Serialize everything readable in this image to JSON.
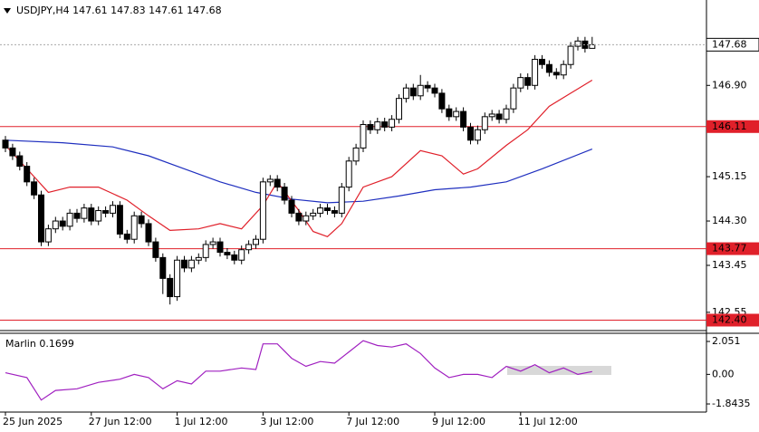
{
  "chart_data": [
    {
      "type": "candlestick",
      "title": "USDJPY,H4  147.61 147.83 147.61 147.68",
      "categories": [
        "25 Jun 2025",
        null,
        null,
        null,
        null,
        null,
        null,
        null,
        null,
        null,
        null,
        null,
        "27 Jun 12:00",
        null,
        null,
        null,
        null,
        null,
        null,
        null,
        null,
        null,
        null,
        null,
        "1 Jul 12:00",
        null,
        null,
        null,
        null,
        null,
        null,
        null,
        null,
        null,
        null,
        null,
        "3 Jul 12:00",
        null,
        null,
        null,
        null,
        null,
        null,
        null,
        null,
        null,
        null,
        null,
        "7 Jul 12:00",
        null,
        null,
        null,
        null,
        null,
        null,
        null,
        null,
        null,
        null,
        null,
        "9 Jul 12:00",
        null,
        null,
        null,
        null,
        null,
        null,
        null,
        null,
        null,
        null,
        null,
        "11 Jul 12:00",
        null,
        null,
        null,
        null,
        null,
        null,
        null,
        null,
        null,
        null
      ],
      "open": [
        145.85,
        145.7,
        145.55,
        145.35,
        145.05,
        144.8,
        143.9,
        144.15,
        144.3,
        144.2,
        144.45,
        144.35,
        144.55,
        144.3,
        144.5,
        144.45,
        144.6,
        144.05,
        143.95,
        144.4,
        144.25,
        143.9,
        143.6,
        143.2,
        142.85,
        143.55,
        143.4,
        143.55,
        143.6,
        143.85,
        143.9,
        143.7,
        143.65,
        143.55,
        143.75,
        143.85,
        143.95,
        145.05,
        145.1,
        144.95,
        144.7,
        144.45,
        144.3,
        144.4,
        144.45,
        144.55,
        144.5,
        144.45,
        144.95,
        145.45,
        145.7,
        146.15,
        146.05,
        146.2,
        146.1,
        146.25,
        146.65,
        146.85,
        146.7,
        146.9,
        146.85,
        146.75,
        146.45,
        146.3,
        146.4,
        146.1,
        145.85,
        146.05,
        146.3,
        146.35,
        146.25,
        146.45,
        146.85,
        147.05,
        146.9,
        147.4,
        147.3,
        147.15,
        147.1,
        147.3,
        147.65,
        147.75,
        147.61
      ],
      "high": [
        145.93,
        145.78,
        145.63,
        145.43,
        145.13,
        144.88,
        144.23,
        144.38,
        144.38,
        144.53,
        144.53,
        144.63,
        144.63,
        144.58,
        144.58,
        144.68,
        144.68,
        144.13,
        144.48,
        144.48,
        144.33,
        143.98,
        143.68,
        143.28,
        143.63,
        143.63,
        143.63,
        143.68,
        143.93,
        143.98,
        143.98,
        143.78,
        143.73,
        143.83,
        143.93,
        144.03,
        145.13,
        145.18,
        145.18,
        145.03,
        144.78,
        144.53,
        144.48,
        144.53,
        144.63,
        144.63,
        144.58,
        145.03,
        145.53,
        145.78,
        146.23,
        146.23,
        146.28,
        146.28,
        146.33,
        146.73,
        146.93,
        146.93,
        147.1,
        146.98,
        146.93,
        146.83,
        146.53,
        146.48,
        146.48,
        146.18,
        146.13,
        146.38,
        146.43,
        146.43,
        146.53,
        146.93,
        147.13,
        147.13,
        147.48,
        147.48,
        147.38,
        147.23,
        147.38,
        147.73,
        147.83,
        147.83,
        147.83
      ],
      "low": [
        145.62,
        145.47,
        145.27,
        144.97,
        144.72,
        143.82,
        143.82,
        144.07,
        144.12,
        144.12,
        144.27,
        144.27,
        144.22,
        144.22,
        144.37,
        144.37,
        143.97,
        143.87,
        143.87,
        144.17,
        143.82,
        143.52,
        142.9,
        142.7,
        142.77,
        143.32,
        143.32,
        143.47,
        143.52,
        143.77,
        143.62,
        143.57,
        143.47,
        143.47,
        143.67,
        143.77,
        143.87,
        144.97,
        144.87,
        144.62,
        144.37,
        144.22,
        144.22,
        144.32,
        144.37,
        144.42,
        144.37,
        144.37,
        144.87,
        145.37,
        145.62,
        145.97,
        145.97,
        146.02,
        146.02,
        146.17,
        146.57,
        146.62,
        146.62,
        146.77,
        146.67,
        146.37,
        146.22,
        146.22,
        146.02,
        145.77,
        145.77,
        145.97,
        146.22,
        146.17,
        146.17,
        146.37,
        146.77,
        146.82,
        146.82,
        147.22,
        147.07,
        147.02,
        147.02,
        147.22,
        147.57,
        147.53,
        147.61
      ],
      "close": [
        145.7,
        145.55,
        145.35,
        145.05,
        144.8,
        143.9,
        144.15,
        144.3,
        144.2,
        144.45,
        144.35,
        144.55,
        144.3,
        144.5,
        144.45,
        144.6,
        144.05,
        143.95,
        144.4,
        144.25,
        143.9,
        143.6,
        143.2,
        142.85,
        143.55,
        143.4,
        143.55,
        143.6,
        143.85,
        143.9,
        143.7,
        143.65,
        143.55,
        143.75,
        143.85,
        143.95,
        145.05,
        145.1,
        144.95,
        144.7,
        144.45,
        144.3,
        144.4,
        144.45,
        144.55,
        144.5,
        144.45,
        144.95,
        145.45,
        145.7,
        146.15,
        146.05,
        146.2,
        146.1,
        146.25,
        146.65,
        146.85,
        146.7,
        146.9,
        146.85,
        146.75,
        146.45,
        146.3,
        146.4,
        146.1,
        145.85,
        146.05,
        146.3,
        146.35,
        146.25,
        146.45,
        146.85,
        147.05,
        146.9,
        147.4,
        147.3,
        147.15,
        147.1,
        147.3,
        147.65,
        147.75,
        147.61,
        147.68
      ],
      "up_color": "#ffffff",
      "down_color": "#000000",
      "series": [
        {
          "color": "#1f2fbf",
          "x": [
            0,
            8,
            15,
            20,
            25,
            30,
            35,
            40,
            45,
            50,
            55,
            60,
            65,
            70,
            75,
            82
          ],
          "values": [
            145.85,
            145.8,
            145.72,
            145.55,
            145.3,
            145.05,
            144.85,
            144.72,
            144.65,
            144.68,
            144.78,
            144.9,
            144.95,
            145.05,
            145.3,
            145.68
          ]
        },
        {
          "color": "#e0202a",
          "x": [
            0,
            3,
            6,
            9,
            13,
            17,
            20,
            23,
            27,
            30,
            33,
            36,
            38,
            41,
            43,
            45,
            47,
            50,
            54,
            58,
            61,
            64,
            66,
            70,
            73,
            76,
            79,
            82
          ],
          "values": [
            145.75,
            145.3,
            144.85,
            144.95,
            144.95,
            144.7,
            144.4,
            144.12,
            144.15,
            144.25,
            144.15,
            144.6,
            145.05,
            144.5,
            144.1,
            144.0,
            144.25,
            144.95,
            145.15,
            145.65,
            145.55,
            145.2,
            145.3,
            145.75,
            146.05,
            146.5,
            146.75,
            147.0
          ]
        }
      ],
      "levels": [
        {
          "value": 146.11,
          "label": "146.11"
        },
        {
          "value": 143.77,
          "label": "143.77"
        },
        {
          "value": 142.4,
          "label": "142.40"
        }
      ],
      "level_color": "#e0202a",
      "ylim": [
        142.2,
        148.45
      ],
      "yticks": [
        142.55,
        143.45,
        {
          "value": 144.3,
          "label": "144.30"
        },
        145.15,
        {
          "value": 146.9,
          "label": "146.90"
        }
      ]
    },
    {
      "type": "line",
      "title": "Marlin 0.1699",
      "series": [
        {
          "color": "#a020c0",
          "x": [
            0,
            3,
            5,
            7,
            10,
            13,
            16,
            18,
            20,
            22,
            24,
            26,
            28,
            30,
            33,
            35,
            36,
            38,
            40,
            42,
            44,
            46,
            48,
            50,
            52,
            54,
            56,
            58,
            60,
            62,
            64,
            66,
            68,
            70,
            72,
            74,
            76,
            78,
            80,
            82
          ],
          "values": [
            0.1,
            -0.2,
            -1.6,
            -1.0,
            -0.9,
            -0.5,
            -0.3,
            0.0,
            -0.2,
            -0.9,
            -0.4,
            -0.6,
            0.2,
            0.2,
            0.4,
            0.3,
            1.9,
            1.9,
            1.0,
            0.5,
            0.8,
            0.7,
            1.4,
            2.1,
            1.8,
            1.7,
            1.9,
            1.3,
            0.4,
            -0.2,
            0.0,
            0.0,
            -0.2,
            0.5,
            0.2,
            0.6,
            0.1,
            0.4,
            0.0,
            0.17
          ]
        }
      ],
      "ylim": [
        -2.35,
        2.56
      ],
      "yticks": [
        -1.8435,
        {
          "value": 0,
          "label": "0.00"
        },
        2.051
      ]
    }
  ]
}
